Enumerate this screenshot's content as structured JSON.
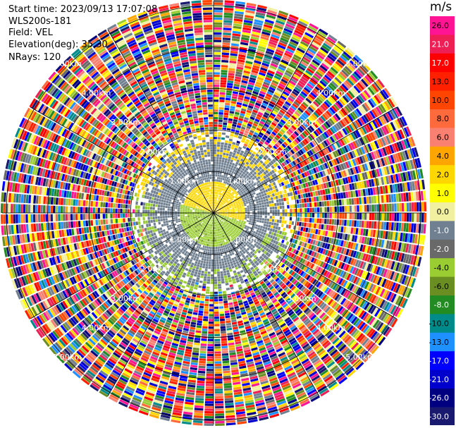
{
  "header": {
    "start_time": "Start time: 2023/09/13 17:07:08",
    "instrument": "WLS200s-181",
    "field": "Field: VEL",
    "elevation": "Elevation(deg): 35.30",
    "nrays": "NRays: 120"
  },
  "chart_data": {
    "type": "heatmap",
    "projection": "polar (PPI)",
    "title": "",
    "field": "VEL",
    "n_rays": 120,
    "elevation_deg": 35.3,
    "range_rings": [
      {
        "label": "1.00km",
        "value_km": 1.0
      },
      {
        "label": "2.00km",
        "value_km": 2.0
      },
      {
        "label": "3.00km",
        "value_km": 3.0
      },
      {
        "label": "4.00km",
        "value_km": 4.0
      },
      {
        "label": "5.00km",
        "value_km": 5.0
      }
    ],
    "max_range_km": 5.1,
    "structure": {
      "near_positive_sector_deg": [
        -165,
        15
      ],
      "near_positive_max_km": 0.75,
      "near_negative_max_km": 0.85,
      "gray_zone_max_km": 1.7,
      "clear_sky_noise_from_km": 2.05
    },
    "colorbar": {
      "unit": "m/s",
      "ticks": [
        "26.0",
        "21.0",
        "17.0",
        "13.0",
        "10.0",
        "8.0",
        "6.0",
        "4.0",
        "2.0",
        "1.0",
        "0.0",
        "-1.0",
        "-2.0",
        "-4.0",
        "-6.0",
        "-8.0",
        "-10.0",
        "-13.0",
        "-17.0",
        "-21.0",
        "-26.0",
        "-30.0"
      ],
      "colors": [
        "#ff1493",
        "#ee1f55",
        "#ff0000",
        "#ff2000",
        "#ff4500",
        "#ff6a3d",
        "#fa8072",
        "#ffa500",
        "#ffd700",
        "#ffff00",
        "#f0f0a0",
        "#708090",
        "#696969",
        "#9acd32",
        "#6b8e23",
        "#228b22",
        "#008b8b",
        "#1e90ff",
        "#0000ff",
        "#0000cd",
        "#000080",
        "#191970"
      ]
    }
  }
}
